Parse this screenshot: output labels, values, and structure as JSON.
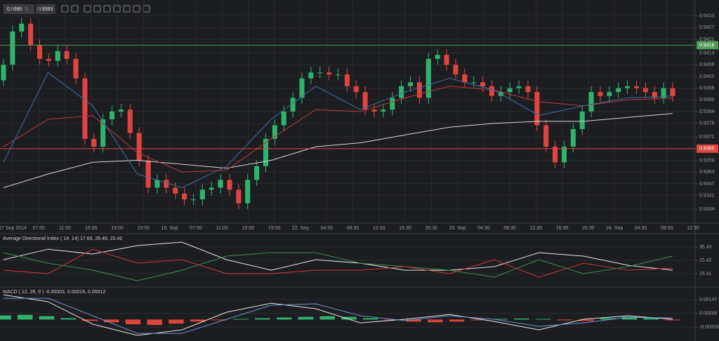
{
  "toolbar": {
    "bid": "0.9390",
    "ask": "0.9393"
  },
  "chart_data": [
    {
      "type": "candlestick",
      "up_color": "#2fb36e",
      "down_color": "#e0443e",
      "grid": true,
      "ylim": [
        0.9329,
        0.9439
      ],
      "yticks": [
        0.9433,
        0.9427,
        0.9421,
        0.9414,
        0.9408,
        0.9402,
        0.9396,
        {
          "value": 0.939,
          "label": "0.9390"
        },
        0.9384,
        0.9378,
        0.9371,
        0.9365,
        0.9359,
        0.9353,
        0.9347,
        0.9341,
        0.9334
      ],
      "xticks": [
        "17 Sep 2014",
        "07:00",
        "11:00",
        "15:00",
        "19:00",
        "23:00",
        "18. Sep",
        "07:00",
        "11:00",
        "15:00",
        "19:00",
        "22. Sep",
        "04:30",
        "08:30",
        "12:30",
        "16:30",
        "20:30",
        "23. Sep",
        "04:30",
        "08:30",
        "12:30",
        "16:30",
        "20:30",
        "24. Sep",
        "04:30",
        "08:30",
        "12:30"
      ],
      "levels": [
        {
          "value": 0.9418,
          "color": "#4f9a55"
        },
        {
          "value": 0.9365,
          "color": "#d9463f"
        }
      ],
      "ohlc": [
        [
          0.94,
          0.9411,
          0.9397,
          0.9408
        ],
        [
          0.9408,
          0.9428,
          0.9405,
          0.9425
        ],
        [
          0.9425,
          0.9432,
          0.9422,
          0.9429
        ],
        [
          0.9429,
          0.9432,
          0.9415,
          0.9418
        ],
        [
          0.9418,
          0.9421,
          0.9408,
          0.9411
        ],
        [
          0.9411,
          0.9414,
          0.9407,
          0.941
        ],
        [
          0.941,
          0.9418,
          0.9407,
          0.9415
        ],
        [
          0.9415,
          0.9418,
          0.9408,
          0.9411
        ],
        [
          0.9411,
          0.9414,
          0.9398,
          0.9401
        ],
        [
          0.9401,
          0.9404,
          0.9367,
          0.937
        ],
        [
          0.937,
          0.9373,
          0.9363,
          0.9366
        ],
        [
          0.9366,
          0.9383,
          0.9363,
          0.938
        ],
        [
          0.938,
          0.9387,
          0.9377,
          0.9384
        ],
        [
          0.9384,
          0.9388,
          0.9381,
          0.9385
        ],
        [
          0.9385,
          0.9388,
          0.937,
          0.9373
        ],
        [
          0.9373,
          0.9376,
          0.9356,
          0.9359
        ],
        [
          0.9359,
          0.9362,
          0.9342,
          0.9345
        ],
        [
          0.9345,
          0.9352,
          0.9342,
          0.9349
        ],
        [
          0.9349,
          0.9352,
          0.9342,
          0.9345
        ],
        [
          0.9345,
          0.9348,
          0.9339,
          0.9342
        ],
        [
          0.9342,
          0.9345,
          0.9336,
          0.9339
        ],
        [
          0.9339,
          0.9342,
          0.9336,
          0.9339
        ],
        [
          0.9339,
          0.9347,
          0.9336,
          0.9344
        ],
        [
          0.9344,
          0.9348,
          0.9341,
          0.9345
        ],
        [
          0.9345,
          0.9352,
          0.9342,
          0.9349
        ],
        [
          0.9349,
          0.9352,
          0.9341,
          0.9344
        ],
        [
          0.9344,
          0.9347,
          0.9334,
          0.9337
        ],
        [
          0.9337,
          0.9352,
          0.9334,
          0.9349
        ],
        [
          0.9349,
          0.9359,
          0.9346,
          0.9356
        ],
        [
          0.9356,
          0.9373,
          0.9353,
          0.937
        ],
        [
          0.937,
          0.938,
          0.9367,
          0.9377
        ],
        [
          0.9377,
          0.9387,
          0.9374,
          0.9384
        ],
        [
          0.9384,
          0.9394,
          0.9381,
          0.9391
        ],
        [
          0.9391,
          0.9404,
          0.9388,
          0.9401
        ],
        [
          0.9401,
          0.9407,
          0.9398,
          0.9404
        ],
        [
          0.9404,
          0.9407,
          0.9401,
          0.9404
        ],
        [
          0.9404,
          0.9407,
          0.94,
          0.9403
        ],
        [
          0.9403,
          0.9406,
          0.94,
          0.9403
        ],
        [
          0.9403,
          0.9406,
          0.9394,
          0.9397
        ],
        [
          0.9397,
          0.94,
          0.9391,
          0.9394
        ],
        [
          0.9394,
          0.9397,
          0.9382,
          0.9385
        ],
        [
          0.9385,
          0.9388,
          0.9381,
          0.9384
        ],
        [
          0.9384,
          0.9388,
          0.9381,
          0.9385
        ],
        [
          0.9385,
          0.9394,
          0.9382,
          0.9391
        ],
        [
          0.9391,
          0.94,
          0.9388,
          0.9397
        ],
        [
          0.9397,
          0.9402,
          0.9394,
          0.9399
        ],
        [
          0.9399,
          0.9402,
          0.9388,
          0.9391
        ],
        [
          0.9391,
          0.9414,
          0.9388,
          0.9411
        ],
        [
          0.9411,
          0.9416,
          0.9408,
          0.9413
        ],
        [
          0.9413,
          0.9416,
          0.9405,
          0.9408
        ],
        [
          0.9408,
          0.9411,
          0.94,
          0.9403
        ],
        [
          0.9403,
          0.9406,
          0.9396,
          0.9399
        ],
        [
          0.9399,
          0.9402,
          0.9396,
          0.9399
        ],
        [
          0.9399,
          0.9402,
          0.9394,
          0.9397
        ],
        [
          0.9397,
          0.94,
          0.9389,
          0.9392
        ],
        [
          0.9392,
          0.9397,
          0.9389,
          0.9394
        ],
        [
          0.9394,
          0.9399,
          0.9391,
          0.9396
        ],
        [
          0.9396,
          0.94,
          0.9393,
          0.9397
        ],
        [
          0.9397,
          0.94,
          0.9391,
          0.9394
        ],
        [
          0.9394,
          0.9397,
          0.9374,
          0.9377
        ],
        [
          0.9377,
          0.938,
          0.9363,
          0.9366
        ],
        [
          0.9366,
          0.9369,
          0.9355,
          0.9358
        ],
        [
          0.9358,
          0.9369,
          0.9355,
          0.9366
        ],
        [
          0.9366,
          0.9378,
          0.9363,
          0.9375
        ],
        [
          0.9375,
          0.9387,
          0.9372,
          0.9384
        ],
        [
          0.9384,
          0.9397,
          0.9381,
          0.9394
        ],
        [
          0.9394,
          0.9397,
          0.9389,
          0.9392
        ],
        [
          0.9392,
          0.9397,
          0.9389,
          0.9394
        ],
        [
          0.9394,
          0.9399,
          0.9391,
          0.9396
        ],
        [
          0.9396,
          0.94,
          0.9393,
          0.9397
        ],
        [
          0.9397,
          0.94,
          0.9393,
          0.9396
        ],
        [
          0.9396,
          0.9399,
          0.9391,
          0.9394
        ],
        [
          0.9394,
          0.9397,
          0.9388,
          0.9391
        ],
        [
          0.9391,
          0.9399,
          0.9388,
          0.9396
        ],
        [
          0.9396,
          0.9399,
          0.9389,
          0.9392
        ]
      ],
      "series": [
        {
          "color": "#d8d8d8",
          "values": [
            0.9345,
            0.9352,
            0.9358,
            0.9359,
            0.9357,
            0.9355,
            0.9359,
            0.9366,
            0.9368,
            0.9372,
            0.9376,
            0.9378,
            0.9379,
            0.9379,
            0.9381,
            0.9383
          ]
        },
        {
          "color": "#b33a3a",
          "values": [
            0.9366,
            0.938,
            0.9382,
            0.9363,
            0.9353,
            0.9354,
            0.937,
            0.9385,
            0.9384,
            0.9391,
            0.9397,
            0.9395,
            0.9389,
            0.9387,
            0.939,
            0.9391
          ]
        },
        {
          "color": "#3d6ea8",
          "values": [
            0.9358,
            0.9404,
            0.9387,
            0.9352,
            0.9345,
            0.9356,
            0.938,
            0.9397,
            0.9385,
            0.9394,
            0.9401,
            0.9395,
            0.9382,
            0.9387,
            0.9391,
            0.9392
          ]
        }
      ]
    },
    {
      "type": "line",
      "title": "Average Directional Index ( 14, 14) 17.69, 26.46, 20.42",
      "grid": true,
      "ylim": [
        7.5,
        41.8
      ],
      "yticks": [
        35.43,
        25.42,
        15.41
      ],
      "series": [
        {
          "color": "#e8e8e8",
          "values": [
            25.9,
            33.8,
            30.2,
            36.5,
            39.1,
            25.9,
            18.0,
            25.9,
            23.3,
            18.0,
            18.0,
            20.7,
            31.2,
            28.6,
            21.7,
            18.0
          ]
        },
        {
          "color": "#3f8a4f",
          "values": [
            31.2,
            23.3,
            18.0,
            10.1,
            18.0,
            28.6,
            31.2,
            31.2,
            23.3,
            20.7,
            18.0,
            12.8,
            25.9,
            15.4,
            20.7,
            28.6
          ]
        },
        {
          "color": "#c23a35",
          "values": [
            18.0,
            15.4,
            33.8,
            23.3,
            25.9,
            15.4,
            15.4,
            18.0,
            18.0,
            20.7,
            15.4,
            25.9,
            12.8,
            23.3,
            18.0,
            19.6
          ]
        }
      ]
    },
    {
      "type": "macd",
      "title": "MACD ( 12, 26, 9 ) -0.00003, 0.00016, 0.00012",
      "grid": true,
      "up_color": "#2fb36e",
      "down_color": "#e0443e",
      "ylim": [
        -0.00148,
        0.00225
      ],
      "yticks": [
        0.00147,
        0.00046,
        -0.00056
      ],
      "histogram": [
        0.0003,
        0.00035,
        0.00025,
        0.0001,
        -0.0001,
        -0.0002,
        -0.00035,
        -0.0004,
        -0.0003,
        -0.00015,
        -5e-05,
        5e-05,
        0.0001,
        0.00015,
        0.0002,
        0.00025,
        0.0002,
        0.0001,
        -5e-05,
        -0.00015,
        -0.0002,
        -0.00015,
        -5e-05,
        5e-05,
        8e-05,
        5e-05,
        -5e-05,
        -0.0001,
        0.0001,
        0.0002,
        0.00015,
        -5e-05
      ],
      "series": [
        {
          "color": "#e8e8e8",
          "values": [
            0.00183,
            0.00131,
            -0.00034,
            -0.00117,
            -0.00076,
            0.00054,
            0.00121,
            0.0008,
            -0.00024,
            2e-05,
            0.00038,
            -0.00014,
            -0.00076,
            2e-05,
            0.00028,
            2e-05
          ]
        },
        {
          "color": "#6f95c8",
          "values": [
            0.00157,
            0.00157,
            0.00028,
            -0.00102,
            -0.00102,
            2e-05,
            0.00106,
            0.00116,
            0.00028,
            -8e-05,
            0.00028,
            2e-05,
            -0.0005,
            -0.00024,
            0.00017,
            0.00012
          ]
        }
      ]
    }
  ]
}
